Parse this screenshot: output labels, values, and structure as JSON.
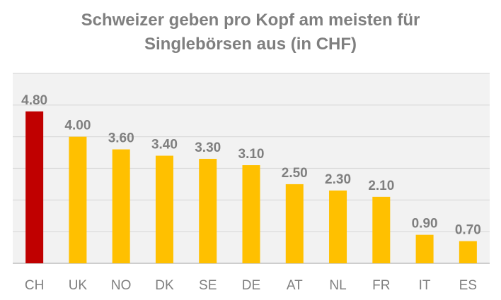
{
  "chart_data": {
    "type": "bar",
    "title_lines": [
      "Schweizer geben pro Kopf am meisten für",
      "Singlebörsen aus (in CHF)"
    ],
    "categories": [
      "CH",
      "UK",
      "NO",
      "DK",
      "SE",
      "DE",
      "AT",
      "NL",
      "FR",
      "IT",
      "ES"
    ],
    "values": [
      4.8,
      4.0,
      3.6,
      3.4,
      3.3,
      3.1,
      2.5,
      2.3,
      2.1,
      0.9,
      0.7
    ],
    "data_labels": [
      "4.80",
      "4.00",
      "3.60",
      "3.40",
      "3.30",
      "3.10",
      "2.50",
      "2.30",
      "2.10",
      "0.90",
      "0.70"
    ],
    "ylim": [
      0,
      6
    ],
    "grid": true,
    "legend": "none",
    "colors": {
      "highlight": "#c00000",
      "bar": "#ffc000",
      "plot_background": "#f2f2f2",
      "gridline": "#d9d9d9",
      "text": "#7f7f7f"
    },
    "highlight_index": 0
  }
}
